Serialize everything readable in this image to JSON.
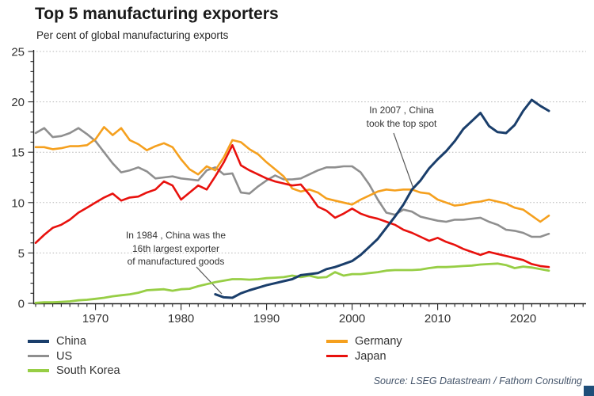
{
  "header": {
    "title": "Top 5 manufacturing exporters",
    "subtitle": "Per cent of global manufacturing exports"
  },
  "footer": {
    "source": "Source: LSEG Datastream / Fathom Consulting"
  },
  "chart_data": {
    "type": "line",
    "title": "Top 5 manufacturing exporters",
    "subtitle": "Per cent of global manufacturing exports",
    "xlabel": "",
    "ylabel": "",
    "ylim": [
      0,
      25
    ],
    "xlim": [
      1963,
      2027
    ],
    "grid": "horizontal dotted at major y ticks",
    "legend_position": "bottom",
    "x_ticks_major": [
      1970,
      1980,
      1990,
      2000,
      2010,
      2020
    ],
    "x_tick_minor_step": 1,
    "y_ticks_major": [
      0,
      5,
      10,
      15,
      20,
      25
    ],
    "y_tick_minor_step": 1,
    "legend_columns": [
      [
        "China",
        "US",
        "South Korea"
      ],
      [
        "Germany",
        "Japan"
      ]
    ],
    "series": [
      {
        "name": "US",
        "color": "#8f8f8f",
        "width": 2.6,
        "start_year": 1963,
        "values": [
          16.9,
          17.4,
          16.5,
          16.6,
          16.9,
          17.4,
          16.8,
          16.1,
          15.0,
          13.9,
          13.0,
          13.2,
          13.5,
          13.1,
          12.4,
          12.5,
          12.6,
          12.4,
          12.3,
          12.2,
          13.2,
          13.5,
          12.8,
          12.9,
          11.0,
          10.9,
          11.6,
          12.2,
          12.7,
          12.3,
          12.3,
          12.4,
          12.8,
          13.2,
          13.5,
          13.5,
          13.6,
          13.6,
          13.0,
          11.8,
          10.3,
          9.0,
          8.8,
          9.3,
          9.1,
          8.6,
          8.4,
          8.2,
          8.1,
          8.3,
          8.3,
          8.4,
          8.5,
          8.1,
          7.8,
          7.3,
          7.2,
          7.0,
          6.6,
          6.6,
          6.9
        ]
      },
      {
        "name": "Germany",
        "color": "#f5a01e",
        "width": 2.6,
        "start_year": 1963,
        "values": [
          15.5,
          15.5,
          15.3,
          15.4,
          15.6,
          15.6,
          15.7,
          16.3,
          17.5,
          16.7,
          17.4,
          16.2,
          15.8,
          15.2,
          15.6,
          15.9,
          15.5,
          14.3,
          13.3,
          12.8,
          13.6,
          13.2,
          14.5,
          16.2,
          16.0,
          15.3,
          14.8,
          14.0,
          13.3,
          12.6,
          11.4,
          11.1,
          11.3,
          11.0,
          10.4,
          10.2,
          10.0,
          9.8,
          10.3,
          10.7,
          11.1,
          11.3,
          11.2,
          11.3,
          11.3,
          11.0,
          10.9,
          10.3,
          10.0,
          9.7,
          9.8,
          10.0,
          10.1,
          10.3,
          10.1,
          9.9,
          9.5,
          9.3,
          8.7,
          8.1,
          8.7
        ]
      },
      {
        "name": "Japan",
        "color": "#e8110d",
        "width": 2.6,
        "start_year": 1963,
        "values": [
          6.0,
          6.8,
          7.5,
          7.8,
          8.3,
          9.0,
          9.5,
          10.0,
          10.5,
          10.9,
          10.2,
          10.5,
          10.6,
          11.0,
          11.3,
          12.1,
          11.7,
          10.3,
          11.0,
          11.7,
          11.3,
          12.6,
          14.0,
          15.7,
          13.7,
          13.2,
          12.8,
          12.4,
          12.1,
          11.9,
          11.7,
          11.8,
          10.8,
          9.6,
          9.2,
          8.5,
          8.9,
          9.4,
          8.9,
          8.6,
          8.4,
          8.1,
          7.8,
          7.3,
          7.0,
          6.6,
          6.2,
          6.5,
          6.1,
          5.8,
          5.4,
          5.1,
          4.8,
          5.1,
          4.9,
          4.7,
          4.5,
          4.3,
          3.9,
          3.7,
          3.6
        ]
      },
      {
        "name": "South Korea",
        "color": "#97ce45",
        "width": 2.8,
        "start_year": 1963,
        "values": [
          0.05,
          0.1,
          0.1,
          0.15,
          0.2,
          0.3,
          0.35,
          0.45,
          0.55,
          0.7,
          0.8,
          0.9,
          1.05,
          1.3,
          1.35,
          1.4,
          1.25,
          1.4,
          1.45,
          1.7,
          1.9,
          2.1,
          2.25,
          2.4,
          2.4,
          2.35,
          2.4,
          2.5,
          2.55,
          2.6,
          2.75,
          2.6,
          2.75,
          2.55,
          2.6,
          3.1,
          2.75,
          2.9,
          2.9,
          3.0,
          3.1,
          3.25,
          3.3,
          3.3,
          3.3,
          3.35,
          3.5,
          3.6,
          3.6,
          3.65,
          3.7,
          3.75,
          3.85,
          3.9,
          3.95,
          3.8,
          3.5,
          3.65,
          3.55,
          3.4,
          3.25
        ]
      },
      {
        "name": "China",
        "color": "#1a3e6b",
        "width": 3.0,
        "start_year": 1984,
        "values": [
          0.9,
          0.6,
          0.55,
          1.0,
          1.3,
          1.55,
          1.8,
          2.0,
          2.2,
          2.4,
          2.8,
          2.9,
          3.0,
          3.4,
          3.6,
          3.9,
          4.2,
          4.8,
          5.6,
          6.4,
          7.5,
          8.6,
          9.8,
          11.3,
          12.2,
          13.4,
          14.3,
          15.1,
          16.1,
          17.3,
          18.1,
          18.9,
          17.6,
          17.0,
          16.9,
          17.7,
          19.1,
          20.2,
          19.6,
          19.1
        ]
      }
    ],
    "annotations": [
      {
        "text": "In 2007 , China\ntook the top spot",
        "leader": [
          497,
          168,
          522,
          238
        ]
      },
      {
        "text": "In 1984 , China was the\n16th largest exporter\nof manufactured goods",
        "leader": [
          248,
          337,
          280,
          371
        ]
      }
    ]
  }
}
